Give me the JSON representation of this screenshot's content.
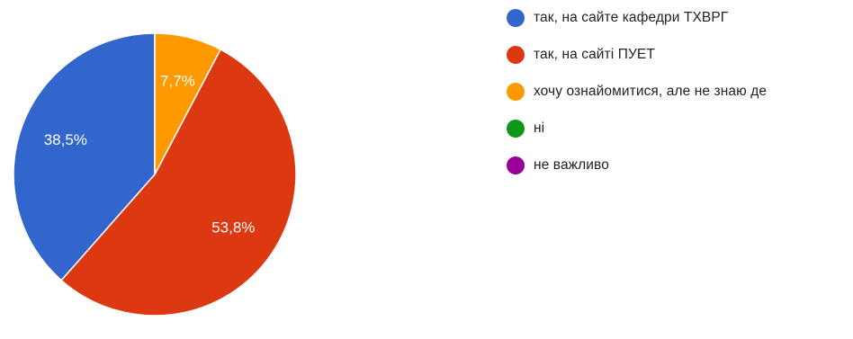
{
  "chart_data": {
    "type": "pie",
    "title": "",
    "legend_position": "right",
    "start_angle_deg": 90,
    "direction": "counterclockwise",
    "slices": [
      {
        "name": "так, на сайте кафедри ТХВРГ",
        "value": 38.5,
        "label": "38,5%",
        "color": "#3366cc"
      },
      {
        "name": "так, на сайті ПУЕТ",
        "value": 53.8,
        "label": "53,8%",
        "color": "#dc3912"
      },
      {
        "name": "хочу ознайомитися, але не знаю де",
        "value": 7.7,
        "label": "7,7%",
        "color": "#ff9900"
      },
      {
        "name": "ні",
        "value": 0,
        "label": "",
        "color": "#109618"
      },
      {
        "name": "не важливо",
        "value": 0,
        "label": "",
        "color": "#990099"
      }
    ]
  }
}
